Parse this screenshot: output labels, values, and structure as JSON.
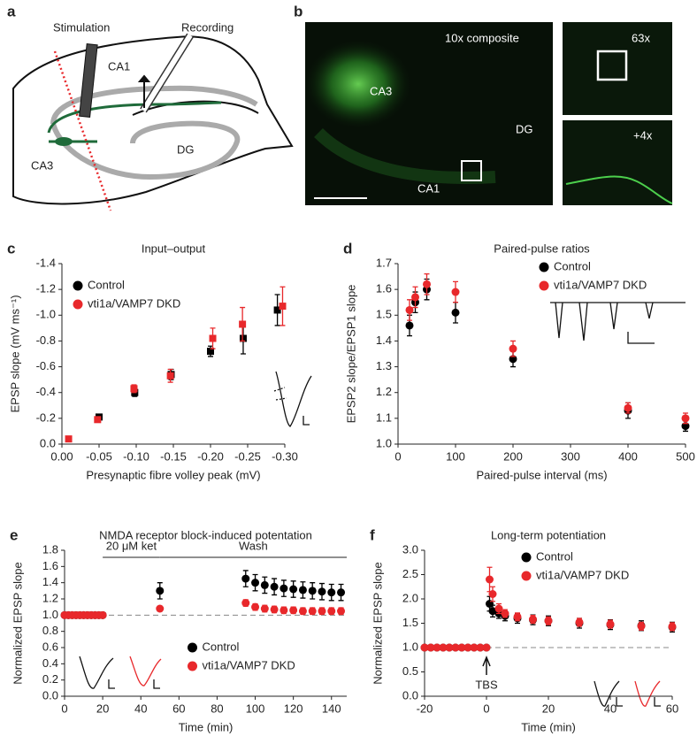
{
  "panel_a": {
    "label": "a",
    "stimulation": "Stimulation",
    "recording": "Recording",
    "ca1": "CA1",
    "ca3": "CA3",
    "dg": "DG"
  },
  "panel_b": {
    "label": "b",
    "composite": "10x composite",
    "ca3": "CA3",
    "dg": "DG",
    "ca1": "CA1",
    "zoom1": "63x",
    "zoom2": "+4x"
  },
  "chart_data": [
    {
      "type": "scatter",
      "panel": "c",
      "title": "Input–output",
      "xlabel": "Presynaptic fibre volley peak (mV)",
      "ylabel": "EPSP slope (mV ms⁻¹)",
      "xlim": [
        0,
        -0.3
      ],
      "xticks": [
        {
          "value": 0,
          "label": "0.00"
        },
        -0.05,
        {
          "value": -0.1,
          "label": "-0.10"
        },
        -0.15,
        {
          "value": -0.2,
          "label": "-0.20"
        },
        -0.25,
        {
          "value": -0.3,
          "label": "-0.30"
        }
      ],
      "ylim": [
        0,
        -1.4
      ],
      "yticks": [
        {
          "value": 0,
          "label": "0.0"
        },
        -0.2,
        -0.4,
        -0.6,
        -0.8,
        {
          "value": -1,
          "label": "-1.0"
        },
        -1.2,
        -1.4
      ],
      "marker": "square",
      "legend": "upper left",
      "series": [
        {
          "name": "Control",
          "color": "#000000",
          "x": [
            -0.05,
            -0.098,
            -0.147,
            -0.2,
            -0.244,
            -0.29
          ],
          "values": [
            -0.21,
            -0.4,
            -0.54,
            -0.72,
            -0.82,
            -1.04
          ],
          "errors": [
            0.02,
            0.03,
            0.04,
            0.04,
            0.12,
            0.12
          ]
        },
        {
          "name": "vti1a/VAMP7 DKD",
          "color": "#e8282b",
          "x": [
            -0.009,
            -0.048,
            -0.097,
            -0.146,
            -0.203,
            -0.243,
            -0.297
          ],
          "values": [
            -0.04,
            -0.19,
            -0.43,
            -0.53,
            -0.82,
            -0.93,
            -1.07
          ],
          "errors": [
            0.01,
            0.02,
            0.03,
            0.05,
            0.08,
            0.13,
            0.15
          ]
        }
      ]
    },
    {
      "type": "scatter",
      "panel": "d",
      "title": "Paired-pulse ratios",
      "xlabel": "Paired-pulse interval (ms)",
      "ylabel": "EPSP2 slope/EPSP1 slope",
      "xlim": [
        0,
        500
      ],
      "xticks": [
        0,
        100,
        200,
        300,
        400,
        500
      ],
      "ylim": [
        1,
        1.7
      ],
      "yticks": [
        {
          "value": 1,
          "label": "1.0"
        },
        1.1,
        1.2,
        1.3,
        1.4,
        1.5,
        1.6,
        1.7
      ],
      "marker": "circle",
      "legend": "upper right",
      "series": [
        {
          "name": "Control",
          "color": "#000000",
          "x": [
            20,
            30,
            50,
            100,
            200,
            400,
            500
          ],
          "values": [
            1.46,
            1.55,
            1.6,
            1.51,
            1.33,
            1.13,
            1.07
          ],
          "errors": [
            0.04,
            0.04,
            0.04,
            0.04,
            0.03,
            0.03,
            0.02
          ]
        },
        {
          "name": "vti1a/VAMP7 DKD",
          "color": "#e8282b",
          "x": [
            20,
            30,
            50,
            100,
            200,
            400,
            500
          ],
          "values": [
            1.52,
            1.57,
            1.62,
            1.59,
            1.37,
            1.14,
            1.1
          ],
          "errors": [
            0.04,
            0.04,
            0.04,
            0.04,
            0.03,
            0.02,
            0.02
          ]
        }
      ]
    },
    {
      "type": "scatter",
      "panel": "e",
      "title": "NMDA receptor block-induced potentation",
      "xlabel": "Time (min)",
      "ylabel": "Normalized EPSP slope",
      "xlim": [
        0,
        148
      ],
      "xticks": [
        0,
        20,
        40,
        60,
        80,
        100,
        120,
        140
      ],
      "ylim": [
        0,
        1.8
      ],
      "yticks": [
        {
          "value": 0,
          "label": "0.0"
        },
        0.2,
        0.4,
        0.6,
        0.8,
        {
          "value": 1,
          "label": "1.0"
        },
        1.2,
        1.4,
        1.6,
        1.8
      ],
      "marker": "circle",
      "legend": "lower center",
      "hline": 1,
      "annotations": [
        {
          "text": "20 μM ket",
          "x": [
            20,
            50
          ]
        },
        {
          "text": "Wash",
          "x": [
            50,
            148
          ]
        }
      ],
      "series": [
        {
          "name": "Control",
          "color": "#000000",
          "x": [
            0,
            2,
            4,
            6,
            8,
            10,
            12,
            14,
            16,
            18,
            20,
            50,
            95,
            100,
            105,
            110,
            115,
            120,
            125,
            130,
            135,
            140,
            145
          ],
          "values": [
            1,
            1,
            1,
            1,
            1,
            1,
            1,
            1,
            1,
            1,
            1,
            1.3,
            1.45,
            1.4,
            1.37,
            1.35,
            1.33,
            1.32,
            1.31,
            1.3,
            1.29,
            1.28,
            1.28
          ],
          "errors": [
            0.03,
            0.03,
            0.03,
            0.03,
            0.03,
            0.03,
            0.03,
            0.03,
            0.03,
            0.03,
            0.03,
            0.1,
            0.1,
            0.1,
            0.1,
            0.1,
            0.1,
            0.1,
            0.1,
            0.1,
            0.1,
            0.1,
            0.1
          ]
        },
        {
          "name": "vti1a/VAMP7 DKD",
          "color": "#e8282b",
          "x": [
            0,
            2,
            4,
            6,
            8,
            10,
            12,
            14,
            16,
            18,
            20,
            50,
            95,
            100,
            105,
            110,
            115,
            120,
            125,
            130,
            135,
            140,
            145
          ],
          "values": [
            1,
            1,
            1,
            1,
            1,
            1,
            1,
            1,
            1,
            1,
            1,
            1.08,
            1.15,
            1.1,
            1.08,
            1.07,
            1.06,
            1.06,
            1.05,
            1.05,
            1.05,
            1.05,
            1.05
          ],
          "errors": [
            0.03,
            0.03,
            0.03,
            0.03,
            0.03,
            0.03,
            0.03,
            0.03,
            0.03,
            0.03,
            0.03,
            0.03,
            0.04,
            0.04,
            0.04,
            0.04,
            0.04,
            0.04,
            0.04,
            0.04,
            0.04,
            0.04,
            0.04
          ]
        }
      ]
    },
    {
      "type": "scatter",
      "panel": "f",
      "title": "Long-term potentiation",
      "xlabel": "Time (min)",
      "ylabel": "Normalized EPSP slope",
      "xlim": [
        -20,
        60
      ],
      "xticks": [
        -20,
        0,
        20,
        40,
        60
      ],
      "ylim": [
        0,
        3
      ],
      "yticks": [
        {
          "value": 0,
          "label": "0.0"
        },
        0.5,
        {
          "value": 1,
          "label": "1.0"
        },
        1.5,
        {
          "value": 2,
          "label": "2.0"
        },
        2.5,
        {
          "value": 3,
          "label": "3.0"
        }
      ],
      "marker": "circle",
      "legend": "upper center",
      "hline": 1,
      "annotations": [
        {
          "text": "TBS",
          "x": 0
        }
      ],
      "series": [
        {
          "name": "Control",
          "color": "#000000",
          "x": [
            -20,
            -18,
            -16,
            -14,
            -12,
            -10,
            -8,
            -6,
            -4,
            -2,
            0,
            1,
            2,
            4,
            6,
            10,
            15,
            20,
            30,
            40,
            50,
            60
          ],
          "values": [
            1,
            1,
            1,
            1,
            1,
            1,
            1,
            1,
            1,
            1,
            1,
            1.9,
            1.75,
            1.7,
            1.65,
            1.6,
            1.57,
            1.55,
            1.5,
            1.47,
            1.45,
            1.42
          ],
          "errors": [
            0.05,
            0.05,
            0.05,
            0.05,
            0.05,
            0.05,
            0.05,
            0.05,
            0.05,
            0.05,
            0.05,
            0.15,
            0.12,
            0.1,
            0.1,
            0.1,
            0.1,
            0.1,
            0.1,
            0.1,
            0.1,
            0.1
          ]
        },
        {
          "name": "vti1a/VAMP7 DKD",
          "color": "#e8282b",
          "x": [
            -20,
            -18,
            -16,
            -14,
            -12,
            -10,
            -8,
            -6,
            -4,
            -2,
            0,
            1,
            2,
            4,
            6,
            10,
            15,
            20,
            30,
            40,
            50,
            60
          ],
          "values": [
            1,
            1,
            1,
            1,
            1,
            1,
            1,
            1,
            1,
            1,
            1,
            2.4,
            2.1,
            1.8,
            1.7,
            1.63,
            1.58,
            1.55,
            1.52,
            1.48,
            1.44,
            1.43
          ],
          "errors": [
            0.05,
            0.05,
            0.05,
            0.05,
            0.05,
            0.05,
            0.05,
            0.05,
            0.05,
            0.05,
            0.05,
            0.25,
            0.15,
            0.1,
            0.08,
            0.08,
            0.08,
            0.08,
            0.08,
            0.08,
            0.08,
            0.08
          ]
        }
      ]
    }
  ]
}
